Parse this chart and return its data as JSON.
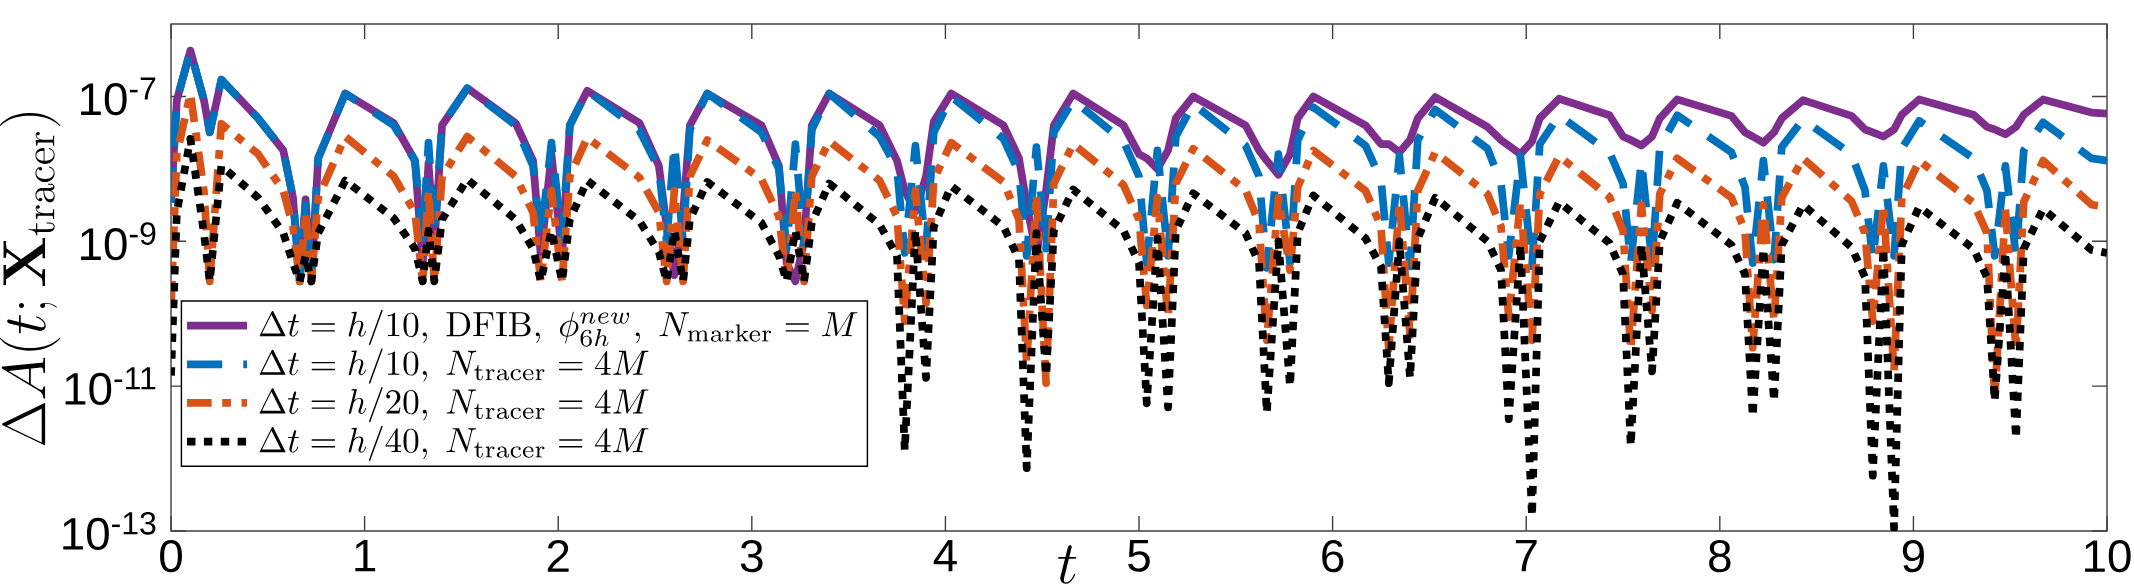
{
  "chart_data": {
    "type": "line",
    "log": "y",
    "legend": "bottom left",
    "xlabel": "t",
    "ylabel": "\\Delta A(t; \\mathbf{X}_{\\mathrm{tracer}})",
    "xlim": [
      0,
      10
    ],
    "ylim": [
      1e-13,
      1e-06
    ],
    "xticks": [
      0,
      1,
      2,
      3,
      4,
      5,
      6,
      7,
      8,
      9,
      10
    ],
    "yticks": [
      {
        "value": 1e-13,
        "label": "10$^{-13}$"
      },
      {
        "value": 1e-11,
        "label": "10$^{-11}$"
      },
      {
        "value": 1e-09,
        "label": "10$^{-9}$"
      },
      {
        "value": 1e-07,
        "label": "10$^{-7}$"
      }
    ],
    "x": [
      0,
      0.03,
      0.1,
      0.17,
      0.2,
      0.26,
      0.45,
      0.58,
      0.63,
      0.665,
      0.695,
      0.725,
      0.76,
      0.9,
      1.15,
      1.26,
      1.3,
      1.33,
      1.36,
      1.4,
      1.53,
      1.78,
      1.87,
      1.91,
      1.965,
      2.02,
      2.06,
      2.15,
      2.42,
      2.52,
      2.56,
      2.6,
      2.645,
      2.68,
      2.77,
      3.05,
      3.14,
      3.18,
      3.225,
      3.27,
      3.31,
      3.4,
      3.66,
      3.75,
      3.79,
      3.845,
      3.9,
      3.94,
      4.03,
      4.3,
      4.38,
      4.42,
      4.47,
      4.52,
      4.56,
      4.66,
      4.92,
      5.0,
      5.04,
      5.095,
      5.15,
      5.19,
      5.28,
      5.55,
      5.62,
      5.66,
      5.72,
      5.78,
      5.82,
      5.9,
      6.17,
      6.25,
      6.29,
      6.345,
      6.4,
      6.44,
      6.53,
      6.8,
      6.87,
      6.91,
      6.97,
      7.03,
      7.07,
      7.17,
      7.43,
      7.5,
      7.54,
      7.595,
      7.65,
      7.69,
      7.78,
      8.06,
      8.13,
      8.17,
      8.225,
      8.28,
      8.32,
      8.43,
      8.68,
      8.75,
      8.79,
      8.845,
      8.9,
      8.94,
      9.03,
      9.31,
      9.38,
      9.42,
      9.475,
      9.53,
      9.57,
      9.67,
      9.92,
      10.0
    ],
    "series": [
      {
        "name": "\\Delta t = h/10,\\ \\mathrm{DFIB},\\ \\phi_{6h}^{new},\\ N_{\\mathrm{marker}} = M",
        "color": "#7e2f8e",
        "line_style": "solid",
        "values": [
          3.4e-09,
          8.9e-08,
          4.3e-07,
          8.9e-08,
          3.2e-08,
          1.7e-07,
          5e-08,
          1.8e-08,
          4e-09,
          2.8e-10,
          3.8e-09,
          2.8e-10,
          1.4e-08,
          1.1e-07,
          4.3e-08,
          1.3e-08,
          4.8e-10,
          1.2e-08,
          8.9e-10,
          4e-08,
          1.3e-07,
          4.3e-08,
          1.3e-08,
          6.3e-10,
          1.6e-08,
          6.3e-10,
          4e-08,
          1.2e-07,
          4.3e-08,
          1.1e-08,
          1.6e-09,
          3.4e-10,
          2.5e-09,
          4e-08,
          1.1e-07,
          4e-08,
          1.1e-08,
          5e-10,
          2.8e-10,
          1e-09,
          4e-08,
          1.1e-07,
          4e-08,
          1.3e-08,
          5e-09,
          2.6e-09,
          7.9e-09,
          4.5e-08,
          1.1e-07,
          4e-08,
          1.4e-08,
          3.2e-09,
          6.6e-10,
          5e-09,
          4e-08,
          1.1e-07,
          4e-08,
          1.6e-08,
          1.4e-08,
          1e-08,
          1.8e-08,
          5e-08,
          1e-07,
          4e-08,
          1.8e-08,
          1.3e-08,
          8.3e-09,
          1.6e-08,
          5e-08,
          1e-07,
          4e-08,
          2.2e-08,
          2.2e-08,
          1.7e-08,
          2.5e-08,
          5e-08,
          9.8e-08,
          3.8e-08,
          2.5e-08,
          2.1e-08,
          1.6e-08,
          2.4e-08,
          5e-08,
          9.3e-08,
          5.5e-08,
          2.8e-08,
          2.5e-08,
          2.1e-08,
          2.8e-08,
          5e-08,
          9.1e-08,
          5.4e-08,
          3.2e-08,
          2.8e-08,
          2.3e-08,
          3.2e-08,
          5e-08,
          8.9e-08,
          5.4e-08,
          3.5e-08,
          3.2e-08,
          2.8e-08,
          3.5e-08,
          5.6e-08,
          9.1e-08,
          5.6e-08,
          3.8e-08,
          3.5e-08,
          3e-08,
          3.8e-08,
          5.6e-08,
          9.1e-08,
          6e-08,
          5.8e-08
        ]
      },
      {
        "name": "\\Delta t = h/10,\\ N_{\\mathrm{tracer}} = 4M",
        "color": "#0072bd",
        "line_style": "dashed",
        "values": [
          3.4e-09,
          8.9e-08,
          4.3e-07,
          8.9e-08,
          3.2e-08,
          1.7e-07,
          5e-08,
          1.8e-08,
          4e-09,
          2.8e-10,
          3.2e-09,
          2.8e-10,
          1.4e-08,
          1.1e-07,
          4e-08,
          1.3e-08,
          1.1e-09,
          2.3e-08,
          1.3e-09,
          4e-08,
          1.3e-07,
          4e-08,
          1.1e-08,
          1.1e-09,
          2.3e-08,
          1.1e-09,
          4e-08,
          1.2e-07,
          3.4e-08,
          1e-08,
          1e-09,
          2.2e-08,
          1e-09,
          3.5e-08,
          1.1e-07,
          3.2e-08,
          1e-08,
          7.9e-10,
          2.2e-08,
          8.9e-10,
          3.5e-08,
          1.1e-07,
          2.8e-08,
          1e-08,
          6.9e-10,
          2.1e-08,
          7.9e-10,
          3.2e-08,
          1e-07,
          2.6e-08,
          8.9e-09,
          6.3e-10,
          2e-08,
          7.9e-10,
          3.2e-08,
          8.9e-08,
          2.4e-08,
          7.9e-09,
          5e-10,
          1.8e-08,
          6.3e-10,
          2.8e-08,
          7.9e-08,
          2.1e-08,
          7.9e-09,
          4.3e-10,
          1.6e-08,
          5e-10,
          2.5e-08,
          7.1e-08,
          2.1e-08,
          7.1e-09,
          5e-10,
          1.5e-08,
          4.5e-10,
          2.5e-08,
          6.6e-08,
          1.9e-08,
          6.3e-09,
          6.3e-10,
          1.5e-08,
          4.5e-10,
          2.2e-08,
          5.5e-08,
          1.7e-08,
          6.3e-09,
          5e-10,
          1.3e-08,
          5e-10,
          2e-08,
          5.5e-08,
          1.7e-08,
          5.6e-09,
          5e-10,
          1.3e-08,
          5.6e-10,
          2e-08,
          4.8e-08,
          1.6e-08,
          5e-09,
          5.6e-10,
          1.1e-08,
          6.3e-10,
          1.9e-08,
          4.6e-08,
          1.4e-08,
          5e-09,
          6.3e-10,
          1.1e-08,
          6.3e-10,
          1.8e-08,
          4.4e-08,
          1.4e-08,
          1.3e-08
        ]
      },
      {
        "name": "\\Delta t = h/20,\\ N_{\\mathrm{tracer}} = 4M",
        "color": "#d95319",
        "line_style": "dashdot",
        "values": [
          1.3e-10,
          1.6e-08,
          1.1e-07,
          5e-09,
          2.8e-10,
          4.2e-08,
          1.6e-08,
          5e-09,
          1.6e-09,
          2.8e-10,
          2.5e-09,
          2.8e-10,
          4e-09,
          2.8e-08,
          7.9e-09,
          2.5e-09,
          2.8e-10,
          5e-09,
          2.8e-10,
          7.9e-09,
          2.8e-08,
          7.9e-09,
          2.5e-09,
          2.8e-10,
          5e-09,
          2.8e-10,
          7.9e-09,
          2.7e-08,
          7.6e-09,
          2.5e-09,
          2.8e-10,
          5e-09,
          2.8e-10,
          7.9e-09,
          2.5e-08,
          7.2e-09,
          2.2e-09,
          2.8e-10,
          5e-09,
          2.8e-10,
          7.9e-09,
          2.4e-08,
          6.9e-09,
          2.2e-09,
          7.9e-11,
          5e-09,
          1.4e-10,
          7.1e-09,
          2.3e-08,
          6.6e-09,
          2e-09,
          2.1e-11,
          4.5e-09,
          1.1e-11,
          6.3e-09,
          2.2e-08,
          6e-09,
          2e-09,
          1.3e-10,
          4e-09,
          8.9e-11,
          6.3e-09,
          1.9e-08,
          5.1e-09,
          1.8e-09,
          4.3e-11,
          4e-09,
          4e-10,
          5.6e-09,
          1.8e-08,
          5e-09,
          1.6e-09,
          3.2e-11,
          3.5e-09,
          5e-11,
          5e-09,
          1.7e-08,
          4.5e-09,
          1.6e-09,
          8.9e-11,
          3.5e-09,
          4.3e-11,
          4.5e-09,
          1.5e-08,
          4.1e-09,
          1.4e-09,
          3.2e-11,
          3.2e-09,
          1.1e-10,
          4.5e-09,
          1.4e-08,
          4e-09,
          1.4e-09,
          3.4e-11,
          3.2e-09,
          7.9e-11,
          4e-09,
          1.4e-08,
          3.6e-09,
          1.3e-09,
          7.9e-11,
          3.2e-09,
          1.6e-11,
          4e-09,
          1.3e-08,
          3.4e-09,
          1.3e-09,
          6.6e-12,
          2.8e-09,
          3.2e-11,
          3.5e-09,
          1.3e-08,
          3.2e-09,
          3e-09
        ]
      },
      {
        "name": "\\Delta t = h/40,\\ N_{\\mathrm{tracer}} = 4M",
        "color": "#000000",
        "line_style": "dotted",
        "values": [
          1.4e-11,
          2.5e-09,
          2.6e-08,
          1.3e-09,
          2.8e-10,
          1.1e-08,
          4e-09,
          1.3e-09,
          5e-10,
          2.8e-10,
          6.3e-10,
          2.8e-10,
          1.3e-09,
          6.9e-09,
          2.1e-09,
          7.9e-10,
          2.8e-10,
          1.4e-09,
          2.8e-10,
          2e-09,
          7.2e-09,
          2e-09,
          7.9e-10,
          2.8e-10,
          1.4e-09,
          2.8e-10,
          2e-09,
          6.9e-09,
          1.9e-09,
          7.1e-10,
          2.8e-10,
          1.4e-09,
          2.8e-10,
          2e-09,
          6.6e-09,
          1.8e-09,
          6.3e-10,
          2.8e-10,
          1.4e-09,
          2.8e-10,
          1.8e-09,
          6.3e-09,
          1.7e-09,
          6.3e-10,
          1.3e-12,
          1.4e-09,
          1.3e-11,
          1.6e-09,
          5.8e-09,
          1.6e-09,
          5.6e-10,
          7.4e-13,
          1.3e-09,
          1.4e-11,
          1.4e-09,
          5.2e-09,
          1.4e-09,
          5e-10,
          5.8e-12,
          1.1e-09,
          5.1e-12,
          1.4e-09,
          4.6e-09,
          1.3e-09,
          5e-10,
          4.3e-12,
          1e-09,
          1e-11,
          1.3e-09,
          4.3e-09,
          1.1e-09,
          4.5e-10,
          1.1e-11,
          1e-09,
          1.3e-11,
          1.1e-09,
          4e-09,
          1e-09,
          4e-10,
          3.5e-12,
          8.9e-10,
          1.6e-13,
          1e-09,
          3.5e-09,
          9.5e-10,
          3.5e-10,
          1.5e-12,
          8.9e-10,
          1.6e-11,
          1e-09,
          3.4e-09,
          8.9e-10,
          3.5e-10,
          3.8e-12,
          7.9e-10,
          6.2e-12,
          8.9e-10,
          3.2e-09,
          8.3e-10,
          3.2e-10,
          5.8e-13,
          7.9e-10,
          1.1e-13,
          8.9e-10,
          3e-09,
          7.9e-10,
          3.2e-10,
          6.3e-12,
          7.1e-10,
          1.9e-12,
          7.9e-10,
          2.8e-09,
          7.6e-10,
          6.9e-10
        ]
      }
    ]
  }
}
